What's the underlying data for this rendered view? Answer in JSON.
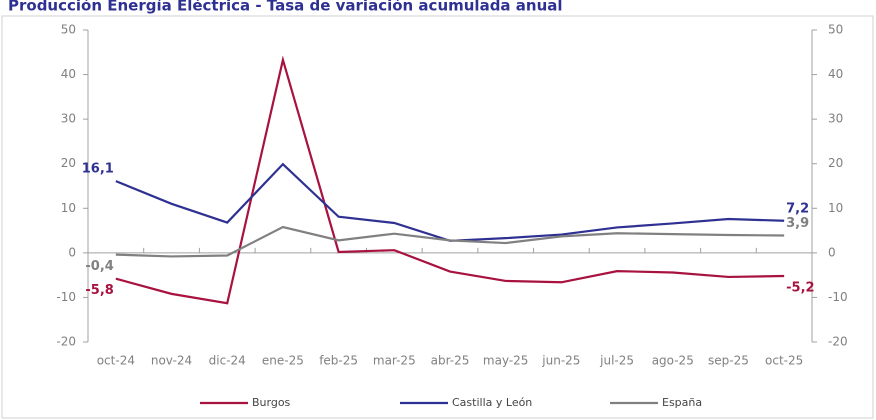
{
  "chart_data": {
    "type": "line",
    "title": "Producción Energía Eléctrica - Tasa de variación acumulada anual",
    "categories": [
      "oct-24",
      "nov-24",
      "dic-24",
      "ene-25",
      "feb-25",
      "mar-25",
      "abr-25",
      "may-25",
      "jun-25",
      "jul-25",
      "ago-25",
      "sep-25",
      "oct-25"
    ],
    "series": [
      {
        "name": "Burgos",
        "color": "#a8123f",
        "values": [
          -5.8,
          -9.2,
          -11.3,
          43.3,
          0.2,
          0.6,
          -4.2,
          -6.3,
          -6.6,
          -4.1,
          -4.4,
          -5.4,
          -5.2
        ],
        "value_labels": [
          "-5,8",
          null,
          null,
          null,
          null,
          null,
          null,
          null,
          null,
          null,
          null,
          null,
          "-5,2"
        ]
      },
      {
        "name": "Castilla y León",
        "color": "#2e3192",
        "values": [
          16.1,
          11,
          6.8,
          19.9,
          8.1,
          6.7,
          2.7,
          3.3,
          4.1,
          5.7,
          6.6,
          7.6,
          7.2
        ],
        "value_labels": [
          "16,1",
          null,
          null,
          null,
          null,
          null,
          null,
          null,
          null,
          null,
          null,
          null,
          "7,2"
        ]
      },
      {
        "name": "España",
        "color": "#808080",
        "values": [
          -0.4,
          -0.8,
          -0.6,
          5.8,
          2.8,
          4.3,
          2.8,
          2.2,
          3.7,
          4.4,
          4.2,
          4.0,
          3.9
        ],
        "value_labels": [
          "-0,4",
          null,
          null,
          null,
          null,
          null,
          null,
          null,
          null,
          null,
          null,
          null,
          "3,9"
        ]
      }
    ],
    "ylim": [
      -20,
      50
    ],
    "yticks": [
      -20,
      -10,
      0,
      10,
      20,
      30,
      40,
      50
    ],
    "y2lim": [
      -20,
      50
    ],
    "y2ticks": [
      -20,
      -10,
      0,
      10,
      20,
      30,
      40,
      50
    ],
    "legend": "bottom"
  }
}
